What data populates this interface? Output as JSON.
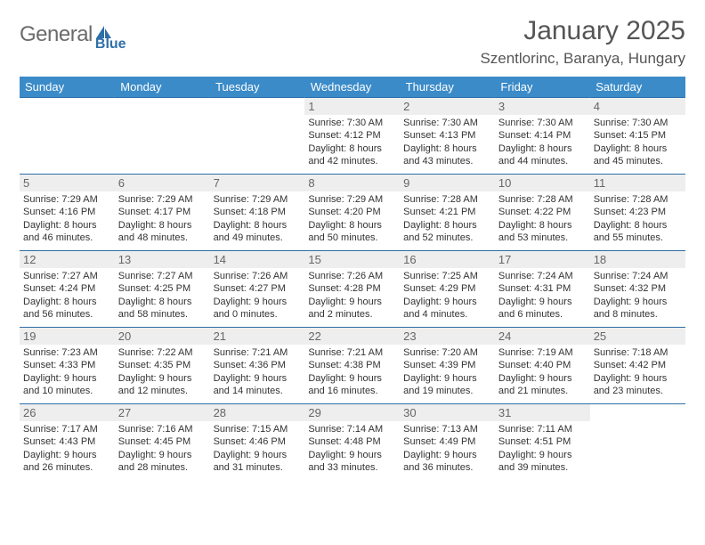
{
  "logo": {
    "general": "General",
    "blue": "Blue"
  },
  "title": "January 2025",
  "location": "Szentlorinc, Baranya, Hungary",
  "colors": {
    "header_bg": "#3b8bc8",
    "header_text": "#ffffff",
    "rule": "#2f6fa7",
    "daynum_bg": "#eeeeee",
    "logo_blue": "#2f6fa7",
    "logo_gray": "#6b6b6b"
  },
  "weekdays": [
    "Sunday",
    "Monday",
    "Tuesday",
    "Wednesday",
    "Thursday",
    "Friday",
    "Saturday"
  ],
  "weeks": [
    [
      {
        "n": "",
        "sr": "",
        "ss": "",
        "dl": ""
      },
      {
        "n": "",
        "sr": "",
        "ss": "",
        "dl": ""
      },
      {
        "n": "",
        "sr": "",
        "ss": "",
        "dl": ""
      },
      {
        "n": "1",
        "sr": "Sunrise: 7:30 AM",
        "ss": "Sunset: 4:12 PM",
        "dl": "Daylight: 8 hours and 42 minutes."
      },
      {
        "n": "2",
        "sr": "Sunrise: 7:30 AM",
        "ss": "Sunset: 4:13 PM",
        "dl": "Daylight: 8 hours and 43 minutes."
      },
      {
        "n": "3",
        "sr": "Sunrise: 7:30 AM",
        "ss": "Sunset: 4:14 PM",
        "dl": "Daylight: 8 hours and 44 minutes."
      },
      {
        "n": "4",
        "sr": "Sunrise: 7:30 AM",
        "ss": "Sunset: 4:15 PM",
        "dl": "Daylight: 8 hours and 45 minutes."
      }
    ],
    [
      {
        "n": "5",
        "sr": "Sunrise: 7:29 AM",
        "ss": "Sunset: 4:16 PM",
        "dl": "Daylight: 8 hours and 46 minutes."
      },
      {
        "n": "6",
        "sr": "Sunrise: 7:29 AM",
        "ss": "Sunset: 4:17 PM",
        "dl": "Daylight: 8 hours and 48 minutes."
      },
      {
        "n": "7",
        "sr": "Sunrise: 7:29 AM",
        "ss": "Sunset: 4:18 PM",
        "dl": "Daylight: 8 hours and 49 minutes."
      },
      {
        "n": "8",
        "sr": "Sunrise: 7:29 AM",
        "ss": "Sunset: 4:20 PM",
        "dl": "Daylight: 8 hours and 50 minutes."
      },
      {
        "n": "9",
        "sr": "Sunrise: 7:28 AM",
        "ss": "Sunset: 4:21 PM",
        "dl": "Daylight: 8 hours and 52 minutes."
      },
      {
        "n": "10",
        "sr": "Sunrise: 7:28 AM",
        "ss": "Sunset: 4:22 PM",
        "dl": "Daylight: 8 hours and 53 minutes."
      },
      {
        "n": "11",
        "sr": "Sunrise: 7:28 AM",
        "ss": "Sunset: 4:23 PM",
        "dl": "Daylight: 8 hours and 55 minutes."
      }
    ],
    [
      {
        "n": "12",
        "sr": "Sunrise: 7:27 AM",
        "ss": "Sunset: 4:24 PM",
        "dl": "Daylight: 8 hours and 56 minutes."
      },
      {
        "n": "13",
        "sr": "Sunrise: 7:27 AM",
        "ss": "Sunset: 4:25 PM",
        "dl": "Daylight: 8 hours and 58 minutes."
      },
      {
        "n": "14",
        "sr": "Sunrise: 7:26 AM",
        "ss": "Sunset: 4:27 PM",
        "dl": "Daylight: 9 hours and 0 minutes."
      },
      {
        "n": "15",
        "sr": "Sunrise: 7:26 AM",
        "ss": "Sunset: 4:28 PM",
        "dl": "Daylight: 9 hours and 2 minutes."
      },
      {
        "n": "16",
        "sr": "Sunrise: 7:25 AM",
        "ss": "Sunset: 4:29 PM",
        "dl": "Daylight: 9 hours and 4 minutes."
      },
      {
        "n": "17",
        "sr": "Sunrise: 7:24 AM",
        "ss": "Sunset: 4:31 PM",
        "dl": "Daylight: 9 hours and 6 minutes."
      },
      {
        "n": "18",
        "sr": "Sunrise: 7:24 AM",
        "ss": "Sunset: 4:32 PM",
        "dl": "Daylight: 9 hours and 8 minutes."
      }
    ],
    [
      {
        "n": "19",
        "sr": "Sunrise: 7:23 AM",
        "ss": "Sunset: 4:33 PM",
        "dl": "Daylight: 9 hours and 10 minutes."
      },
      {
        "n": "20",
        "sr": "Sunrise: 7:22 AM",
        "ss": "Sunset: 4:35 PM",
        "dl": "Daylight: 9 hours and 12 minutes."
      },
      {
        "n": "21",
        "sr": "Sunrise: 7:21 AM",
        "ss": "Sunset: 4:36 PM",
        "dl": "Daylight: 9 hours and 14 minutes."
      },
      {
        "n": "22",
        "sr": "Sunrise: 7:21 AM",
        "ss": "Sunset: 4:38 PM",
        "dl": "Daylight: 9 hours and 16 minutes."
      },
      {
        "n": "23",
        "sr": "Sunrise: 7:20 AM",
        "ss": "Sunset: 4:39 PM",
        "dl": "Daylight: 9 hours and 19 minutes."
      },
      {
        "n": "24",
        "sr": "Sunrise: 7:19 AM",
        "ss": "Sunset: 4:40 PM",
        "dl": "Daylight: 9 hours and 21 minutes."
      },
      {
        "n": "25",
        "sr": "Sunrise: 7:18 AM",
        "ss": "Sunset: 4:42 PM",
        "dl": "Daylight: 9 hours and 23 minutes."
      }
    ],
    [
      {
        "n": "26",
        "sr": "Sunrise: 7:17 AM",
        "ss": "Sunset: 4:43 PM",
        "dl": "Daylight: 9 hours and 26 minutes."
      },
      {
        "n": "27",
        "sr": "Sunrise: 7:16 AM",
        "ss": "Sunset: 4:45 PM",
        "dl": "Daylight: 9 hours and 28 minutes."
      },
      {
        "n": "28",
        "sr": "Sunrise: 7:15 AM",
        "ss": "Sunset: 4:46 PM",
        "dl": "Daylight: 9 hours and 31 minutes."
      },
      {
        "n": "29",
        "sr": "Sunrise: 7:14 AM",
        "ss": "Sunset: 4:48 PM",
        "dl": "Daylight: 9 hours and 33 minutes."
      },
      {
        "n": "30",
        "sr": "Sunrise: 7:13 AM",
        "ss": "Sunset: 4:49 PM",
        "dl": "Daylight: 9 hours and 36 minutes."
      },
      {
        "n": "31",
        "sr": "Sunrise: 7:11 AM",
        "ss": "Sunset: 4:51 PM",
        "dl": "Daylight: 9 hours and 39 minutes."
      },
      {
        "n": "",
        "sr": "",
        "ss": "",
        "dl": ""
      }
    ]
  ]
}
